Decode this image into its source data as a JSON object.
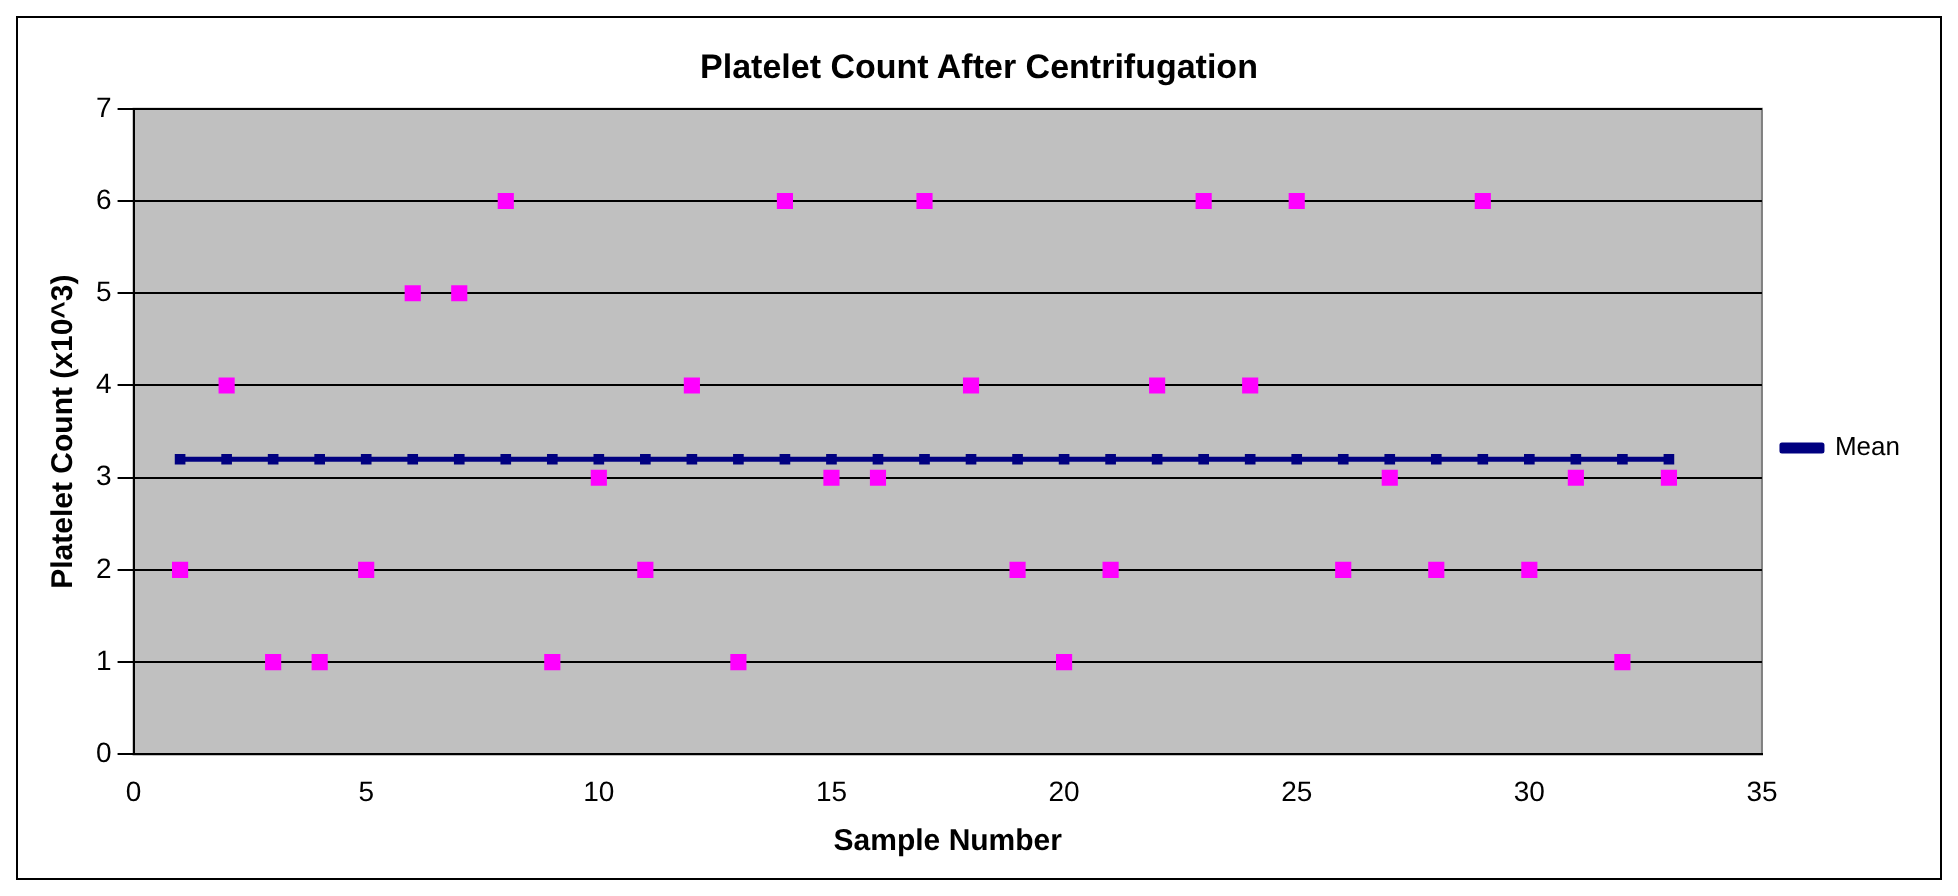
{
  "chart_data": {
    "type": "scatter",
    "title": "Platelet Count After Centrifugation",
    "xlabel": "Sample Number",
    "ylabel": "Platelet Count (x10^3)",
    "x": [
      1,
      2,
      3,
      4,
      5,
      6,
      7,
      8,
      9,
      10,
      11,
      12,
      13,
      14,
      15,
      16,
      17,
      18,
      19,
      20,
      21,
      22,
      23,
      24,
      25,
      26,
      27,
      28,
      29,
      30,
      31,
      32,
      33
    ],
    "series": [
      {
        "color": "#ff00ff",
        "marker": "square",
        "values": [
          2,
          4,
          1,
          1,
          2,
          5,
          5,
          6,
          1,
          3,
          2,
          4,
          1,
          6,
          3,
          3,
          6,
          4,
          2,
          1,
          2,
          4,
          6,
          4,
          6,
          2,
          3,
          2,
          6,
          2,
          3,
          1,
          3
        ]
      },
      {
        "name": "Mean",
        "type": "line",
        "color": "#000080",
        "marker": "square",
        "line_style": "solid",
        "values": [
          3.2,
          3.2,
          3.2,
          3.2,
          3.2,
          3.2,
          3.2,
          3.2,
          3.2,
          3.2,
          3.2,
          3.2,
          3.2,
          3.2,
          3.2,
          3.2,
          3.2,
          3.2,
          3.2,
          3.2,
          3.2,
          3.2,
          3.2,
          3.2,
          3.2,
          3.2,
          3.2,
          3.2,
          3.2,
          3.2,
          3.2,
          3.2,
          3.2
        ]
      }
    ],
    "xlim": [
      0,
      35
    ],
    "xticks": [
      0,
      5,
      10,
      15,
      20,
      25,
      30,
      35
    ],
    "ylim": [
      0,
      7
    ],
    "yticks": [
      0,
      1,
      2,
      3,
      4,
      5,
      6,
      7
    ],
    "grid": "y",
    "legend": "right"
  }
}
